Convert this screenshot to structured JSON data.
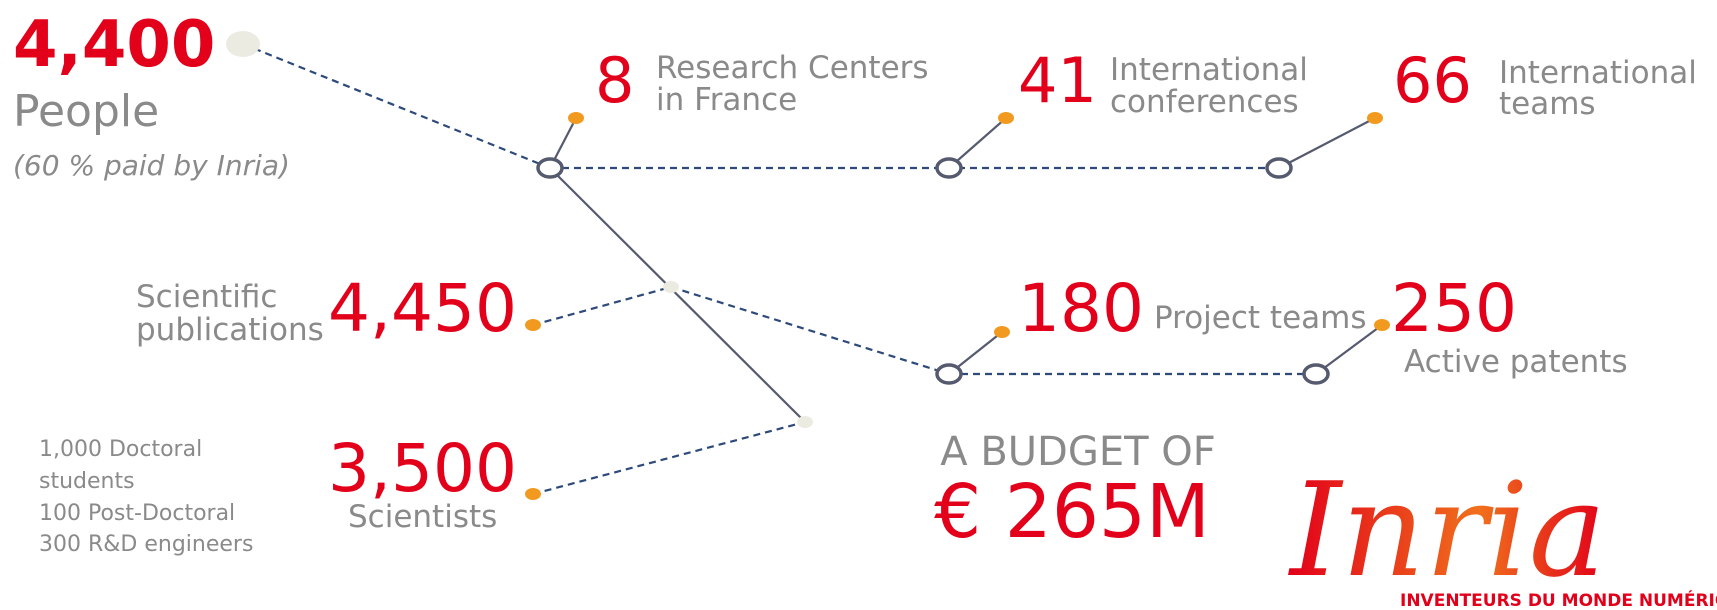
{
  "people": {
    "value": "4,400",
    "label": "People",
    "note": "(60 % paid by Inria)"
  },
  "stats": [
    {
      "value": "8",
      "label": [
        "Research Centers",
        "in France"
      ]
    },
    {
      "value": "41",
      "label": [
        "International",
        "conferences"
      ]
    },
    {
      "value": "66",
      "label": [
        "International",
        "teams"
      ]
    },
    {
      "value": "4,450",
      "label": [
        "Scientific",
        "publications"
      ]
    },
    {
      "value": "180",
      "label": [
        "Project teams"
      ]
    },
    {
      "value": "250",
      "label": [
        "Active patents"
      ]
    },
    {
      "value": "3,500",
      "label": [
        "Scientists"
      ]
    }
  ],
  "staff": [
    "1,000 Doctoral",
    "students",
    "100 Post-Doctoral",
    "300 R&D engineers"
  ],
  "budget": {
    "label": "A BUDGET OF",
    "value": "€ 265M"
  },
  "logo": {
    "name": "Inria",
    "tagline": "INVENTEURS DU MONDE NUMÉRIQUE"
  }
}
